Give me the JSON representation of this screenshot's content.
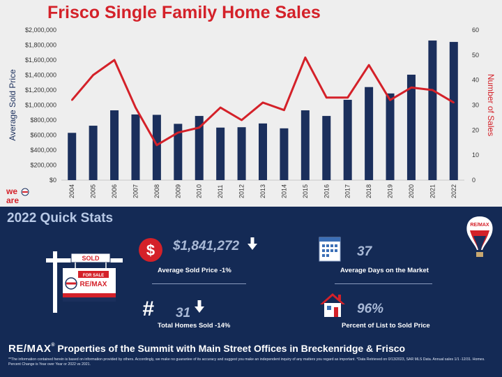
{
  "chart_data": {
    "type": "bar+line",
    "title": "Frisco Single Family Home Sales",
    "categories": [
      "2004",
      "2005",
      "2006",
      "2007",
      "2008",
      "2009",
      "2010",
      "2011",
      "2012",
      "2013",
      "2014",
      "2015",
      "2016",
      "2017",
      "2018",
      "2019",
      "2020",
      "2021",
      "2022"
    ],
    "series": [
      {
        "name": "Average Sold Price",
        "type": "bar",
        "axis": "left",
        "color": "#1b2f5c",
        "values": [
          630000,
          725000,
          930000,
          875000,
          870000,
          750000,
          855000,
          700000,
          705000,
          755000,
          690000,
          930000,
          855000,
          1070000,
          1240000,
          1155000,
          1405000,
          1860000,
          1841272
        ]
      },
      {
        "name": "Number of Sales",
        "type": "line",
        "axis": "right",
        "color": "#d42129",
        "values": [
          32,
          42,
          48,
          29,
          14,
          19,
          21,
          29,
          24,
          31,
          28,
          49,
          33,
          33,
          46,
          32,
          37,
          36,
          31
        ]
      }
    ],
    "ylabel": "Average Sold Price",
    "y2label": "Number of Sales",
    "ylim": [
      0,
      2000000
    ],
    "y2lim": [
      0,
      60
    ],
    "y_ticks": [
      "$0",
      "$200,000",
      "$400,000",
      "$600,000",
      "$800,000",
      "$1,000,000",
      "$1,200,000",
      "$1,400,000",
      "$1,600,000",
      "$1,800,000",
      "$2,000,000"
    ],
    "y2_ticks": [
      "0",
      "10",
      "20",
      "30",
      "40",
      "50",
      "60"
    ],
    "grid": false,
    "legend": "none"
  },
  "logo_text": "we are RE/MAX",
  "quick_stats": {
    "title": "2022 Quick Stats",
    "avg_price": {
      "value": "$1,841,272",
      "label": "Average Sold Price -1%",
      "icon": "dollar-icon",
      "trend": "down"
    },
    "days_market": {
      "value": "37",
      "label": "Average Days on the Market",
      "icon": "calendar-icon"
    },
    "total_sold": {
      "value": "31",
      "label": "Total Homes Sold -14%",
      "icon": "hash-icon",
      "trend": "down"
    },
    "pct_list": {
      "value": "96%",
      "label": "Percent of List to Sold Price",
      "icon": "house-icon"
    },
    "sign_sold": "SOLD",
    "sign_for_sale": "FOR SALE",
    "sign_brand": "RE/MAX",
    "balloon_brand": "RE/MAX"
  },
  "footer": {
    "brand": "RE/MAX",
    "text": "Properties of the Summit with Main Street Offices in Breckenridge & Frisco",
    "note": "**The information contained herein is based on information provided by others. Accordingly, we make no guarantee of its accuracy and suggest you make an independent inquiry of any matters you regard as important. *Data Retrieved on 0/13/2023, SAR MLS Data. Annual sales 1/1 -12/31. Homes. Percent Change is Year over Year or 2022 vs 2021."
  },
  "colors": {
    "bar": "#1b2f5c",
    "line": "#d42129",
    "panel": "#142a55",
    "accent": "#a9b9d6"
  }
}
